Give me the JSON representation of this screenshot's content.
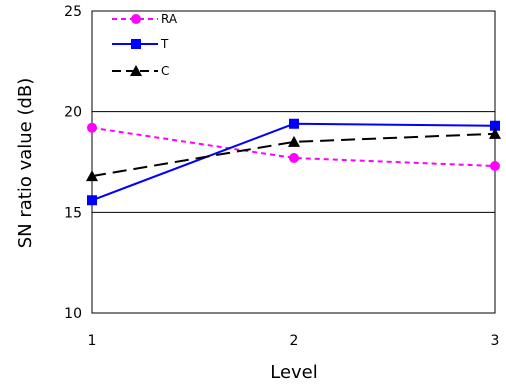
{
  "chart_data": {
    "type": "line",
    "xlabel": "Level",
    "ylabel": "SN ratio value (dB)",
    "x": [
      1,
      2,
      3
    ],
    "x_tick_labels": [
      "1",
      "2",
      "3"
    ],
    "ylim": [
      10,
      25
    ],
    "y_ticks": [
      10,
      15,
      20,
      25
    ],
    "y_tick_labels": [
      "10",
      "15",
      "20",
      "25"
    ],
    "grid": "horizontal",
    "legend_position": "top-left",
    "series": [
      {
        "name": "RA",
        "values": [
          19.2,
          17.7,
          17.3
        ],
        "color": "#ff00ff",
        "dash": "dashed-short",
        "marker": "circle"
      },
      {
        "name": "T",
        "values": [
          15.6,
          19.4,
          19.3
        ],
        "color": "#0000ff",
        "dash": "solid",
        "marker": "square"
      },
      {
        "name": "C",
        "values": [
          16.8,
          18.5,
          18.9
        ],
        "color": "#000000",
        "dash": "dashed-long",
        "marker": "triangle"
      }
    ]
  }
}
